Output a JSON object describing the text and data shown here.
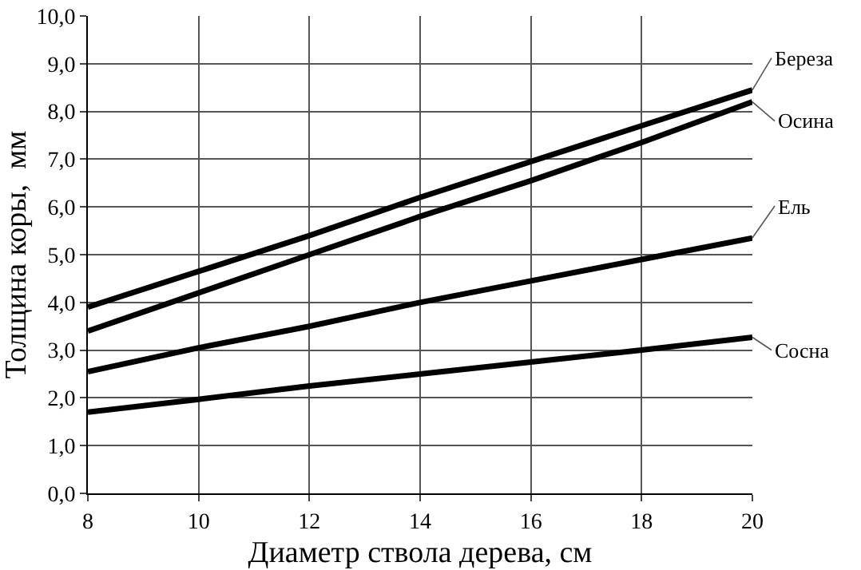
{
  "chart_data": {
    "type": "line",
    "xlabel": "Диаметр ствола дерева, см",
    "ylabel": "Толщина коры,  мм",
    "x": [
      8,
      10,
      12,
      14,
      16,
      18,
      20
    ],
    "series": [
      {
        "name": "Береза",
        "color": "#000000",
        "values": [
          3.9,
          4.65,
          5.4,
          6.2,
          6.95,
          7.7,
          8.45
        ]
      },
      {
        "name": "Осина",
        "color": "#000000",
        "values": [
          3.4,
          4.2,
          5.0,
          5.8,
          6.55,
          7.35,
          8.2
        ]
      },
      {
        "name": "Ель",
        "color": "#000000",
        "values": [
          2.55,
          3.05,
          3.5,
          4.0,
          4.45,
          4.9,
          5.35
        ]
      },
      {
        "name": "Сосна",
        "color": "#000000",
        "values": [
          1.7,
          1.97,
          2.25,
          2.5,
          2.75,
          3.0,
          3.27
        ]
      }
    ],
    "xlim": [
      8,
      20
    ],
    "xticks": [
      8,
      10,
      12,
      14,
      16,
      18,
      20
    ],
    "ylim": [
      0,
      10
    ],
    "yticks": [
      {
        "value": 0,
        "label": "0,0"
      },
      {
        "value": 1,
        "label": "1,0"
      },
      {
        "value": 2,
        "label": "2,0"
      },
      {
        "value": 3,
        "label": "3,0"
      },
      {
        "value": 4,
        "label": "4,0"
      },
      {
        "value": 5,
        "label": "5,0"
      },
      {
        "value": 6,
        "label": "6,0"
      },
      {
        "value": 7,
        "label": "7,0"
      },
      {
        "value": 8,
        "label": "8,0"
      },
      {
        "value": 9,
        "label": "9,0"
      },
      {
        "value": 10,
        "label": "10,0"
      }
    ],
    "grid": true,
    "legend": false,
    "marker": "none",
    "line_style": "solid"
  }
}
